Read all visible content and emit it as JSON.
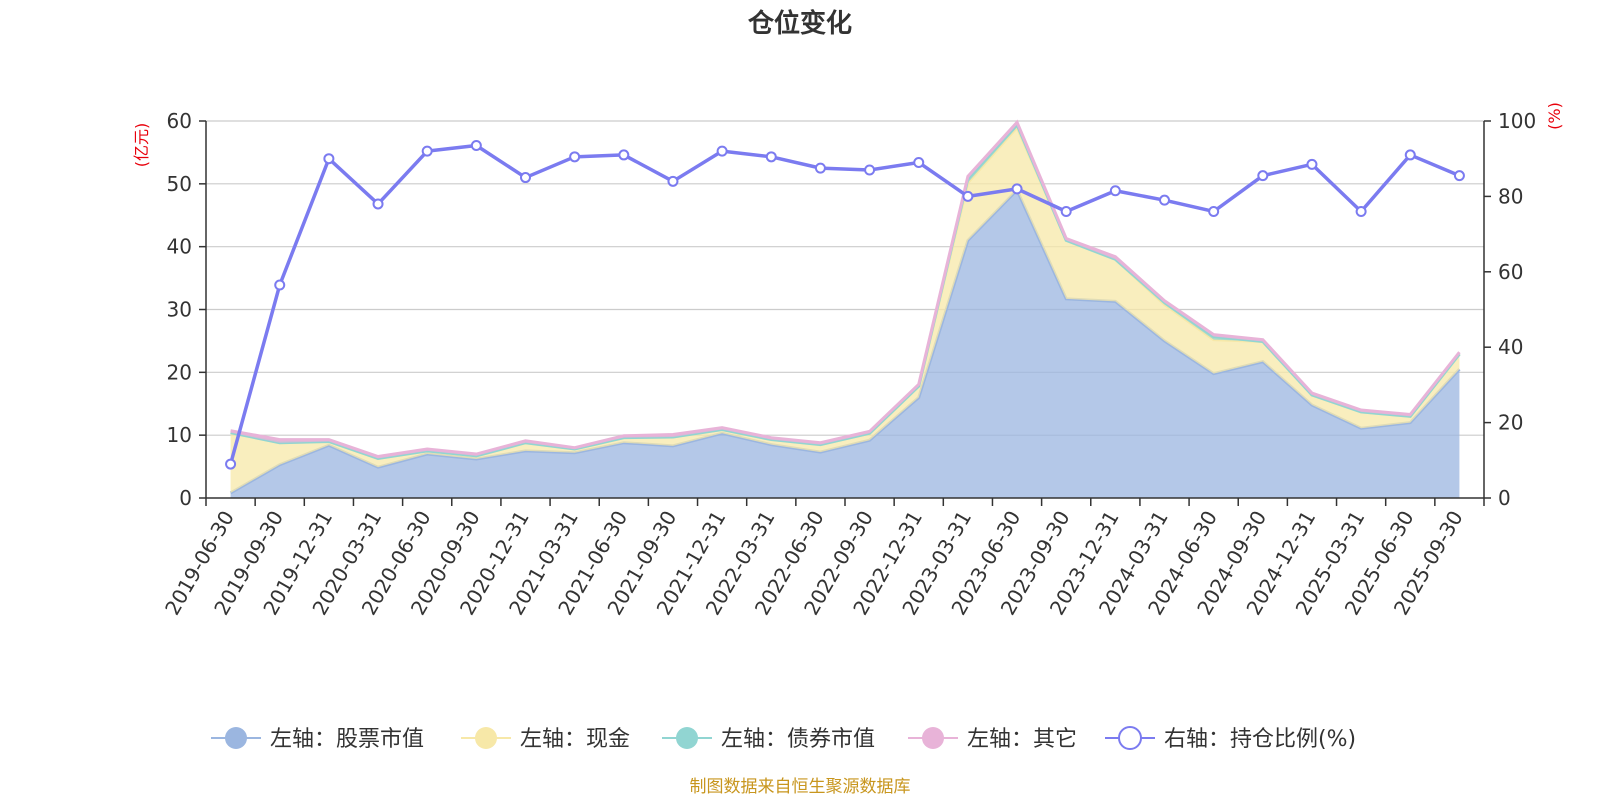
{
  "chart_data": {
    "type": "area",
    "title": "仓位变化",
    "left_axis": {
      "unit": "(亿元)",
      "ylim": [
        0,
        60
      ],
      "ticks": [
        0,
        10,
        20,
        30,
        40,
        50,
        60
      ]
    },
    "right_axis": {
      "unit": "(%)",
      "ylim": [
        0,
        100
      ],
      "ticks": [
        0,
        20,
        40,
        60,
        80,
        100
      ]
    },
    "grid": true,
    "legend_position": "bottom",
    "categories": [
      "2019-06-30",
      "2019-09-30",
      "2019-12-31",
      "2020-03-31",
      "2020-06-30",
      "2020-09-30",
      "2020-12-31",
      "2021-03-31",
      "2021-06-30",
      "2021-09-30",
      "2021-12-31",
      "2022-03-31",
      "2022-06-30",
      "2022-09-30",
      "2022-12-31",
      "2023-03-31",
      "2023-06-30",
      "2023-09-30",
      "2023-12-31",
      "2024-03-31",
      "2024-06-30",
      "2024-09-30",
      "2024-12-31",
      "2025-03-31",
      "2025-06-30",
      "2025-09-30"
    ],
    "stacked_series": [
      {
        "name": "左轴：股票市值",
        "color": "#9bb6e0",
        "values": [
          0.8,
          5.3,
          8.4,
          4.9,
          7.0,
          6.2,
          7.5,
          7.2,
          8.8,
          8.3,
          10.3,
          8.5,
          7.3,
          9.2,
          16.0,
          41.0,
          49.0,
          31.7,
          31.3,
          25.0,
          19.8,
          21.7,
          14.8,
          11.1,
          12.0,
          20.5
        ]
      },
      {
        "name": "左轴：现金",
        "color": "#f7e8a8",
        "values": [
          9.6,
          3.5,
          0.6,
          1.4,
          0.5,
          0.5,
          1.3,
          0.6,
          0.8,
          1.4,
          0.6,
          0.8,
          1.2,
          1.1,
          1.8,
          9.2,
          10.0,
          9.3,
          6.7,
          5.8,
          5.4,
          3.2,
          1.6,
          2.6,
          1.0,
          2.4
        ]
      },
      {
        "name": "左轴：债券市值",
        "color": "#91d5d2",
        "values": [
          0,
          0,
          0,
          0,
          0,
          0,
          0,
          0,
          0,
          0,
          0,
          0,
          0,
          0,
          0,
          0.6,
          0.4,
          0,
          0,
          0.3,
          0.5,
          0,
          0,
          0,
          0,
          0
        ]
      },
      {
        "name": "左轴：其它",
        "color": "#e8b3d8",
        "values": [
          0.3,
          0.5,
          0.3,
          0.3,
          0.3,
          0.3,
          0.3,
          0.2,
          0.3,
          0.4,
          0.3,
          0.3,
          0.3,
          0.3,
          0.3,
          0.4,
          0.4,
          0.3,
          0.4,
          0.3,
          0.3,
          0.3,
          0.3,
          0.3,
          0.3,
          0.3
        ]
      }
    ],
    "line_series": {
      "name": "右轴：持仓比例(%)",
      "color": "#7b7bf0",
      "axis": "right",
      "values": [
        9,
        56.5,
        90,
        78,
        92,
        93.5,
        85,
        90.5,
        91,
        84,
        92,
        90.5,
        87.5,
        87,
        89,
        80,
        82,
        76,
        81.5,
        79,
        76,
        85.5,
        88.5,
        76,
        91,
        85.5
      ]
    },
    "source": "制图数据来自恒生聚源数据库"
  }
}
